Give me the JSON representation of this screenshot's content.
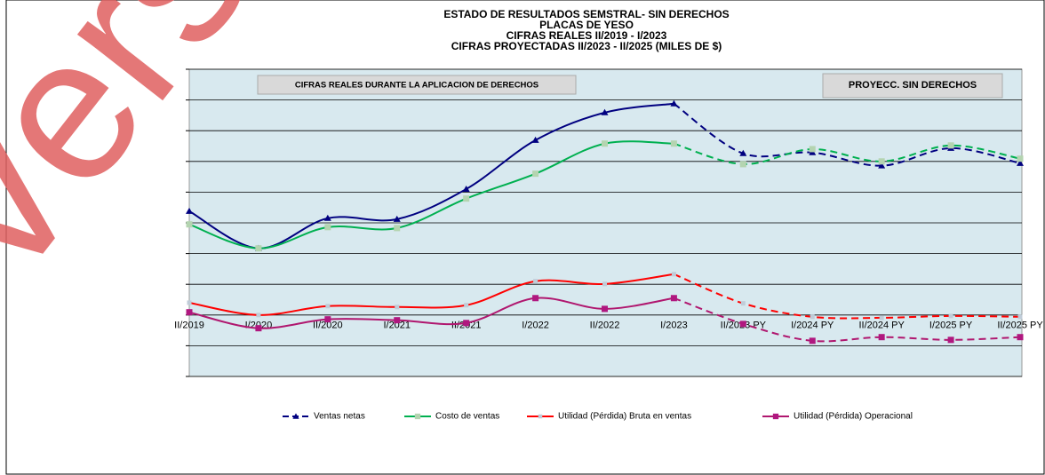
{
  "chart_data": {
    "type": "line",
    "title": [
      "ESTADO DE RESULTADOS SEMSTRAL- SIN DERECHOS",
      "PLACAS DE YESO",
      "CIFRAS REALES II/2019 - I/2023",
      "CIFRAS  PROYECTADAS  II/2023 - II/2025 (MILES DE $)"
    ],
    "annotations": [
      "CIFRAS REALES DURANTE LA APLICACION DE DERECHOS",
      "PROYECC. SIN  DERECHOS"
    ],
    "watermark": "Vers",
    "categories": [
      "II/2019",
      "I/2020",
      "II/2020",
      "I/2021",
      "II/2021",
      "I/2022",
      "II/2022",
      "I/2023",
      "II/2023 PY",
      "I/2024 PY",
      "II/2024 PY",
      "I/2025 PY",
      "II/2025 PY"
    ],
    "dash_from": 7,
    "series": [
      {
        "name": "Ventas netas",
        "color": "#000080",
        "marker": "triangle",
        "marker_color": "#000080",
        "values": [
          3.38,
          2.17,
          3.15,
          3.12,
          4.1,
          5.69,
          6.59,
          6.88,
          5.26,
          5.29,
          4.86,
          5.43,
          4.94
        ]
      },
      {
        "name": "Costo de ventas",
        "color": "#00b050",
        "marker": "square",
        "marker_color": "#b4d4b0",
        "values": [
          2.95,
          2.17,
          2.86,
          2.83,
          3.79,
          4.6,
          5.58,
          5.58,
          4.91,
          5.4,
          5.0,
          5.52,
          5.09
        ]
      },
      {
        "name": "Utilidad (Pérdida) Bruta en ventas",
        "color": "#ff0000",
        "marker": "small",
        "marker_color": "#c0ccd8",
        "values": [
          0.4,
          0,
          0.29,
          0.26,
          0.32,
          1.1,
          1.01,
          1.33,
          0.38,
          -0.06,
          -0.09,
          -0.03,
          -0.06
        ]
      },
      {
        "name": "Utilidad (Pérdida) Operacional",
        "color": "#b0176f",
        "marker": "square",
        "marker_color": "#b0177f",
        "values": [
          0.09,
          -0.43,
          -0.14,
          -0.17,
          -0.26,
          0.55,
          0.2,
          0.55,
          -0.29,
          -0.84,
          -0.72,
          -0.81,
          -0.72
        ]
      }
    ],
    "ylim": [
      -2,
      8
    ],
    "yticks": [
      -2,
      -1,
      0,
      1,
      2,
      3,
      4,
      5,
      6,
      7,
      8
    ],
    "grid": true
  }
}
